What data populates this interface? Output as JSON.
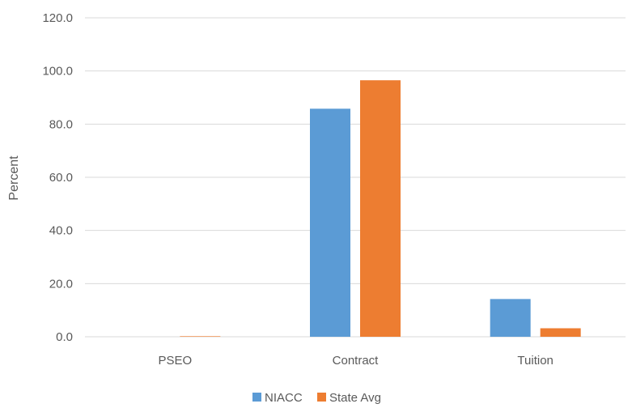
{
  "chart_data": {
    "type": "bar",
    "title": "",
    "xlabel": "",
    "ylabel": "Percent",
    "ylim": [
      0,
      120
    ],
    "yticks": [
      "0.0",
      "20.0",
      "40.0",
      "60.0",
      "80.0",
      "100.0",
      "120.0"
    ],
    "grid": true,
    "legend_position": "bottom",
    "categories": [
      "PSEO",
      "Contract",
      "Tuition"
    ],
    "series": [
      {
        "name": "NIACC",
        "color": "#5b9bd5",
        "values": [
          0.0,
          85.8,
          14.2
        ]
      },
      {
        "name": "State Avg",
        "color": "#ed7d31",
        "values": [
          0.2,
          96.5,
          3.2
        ]
      }
    ]
  }
}
